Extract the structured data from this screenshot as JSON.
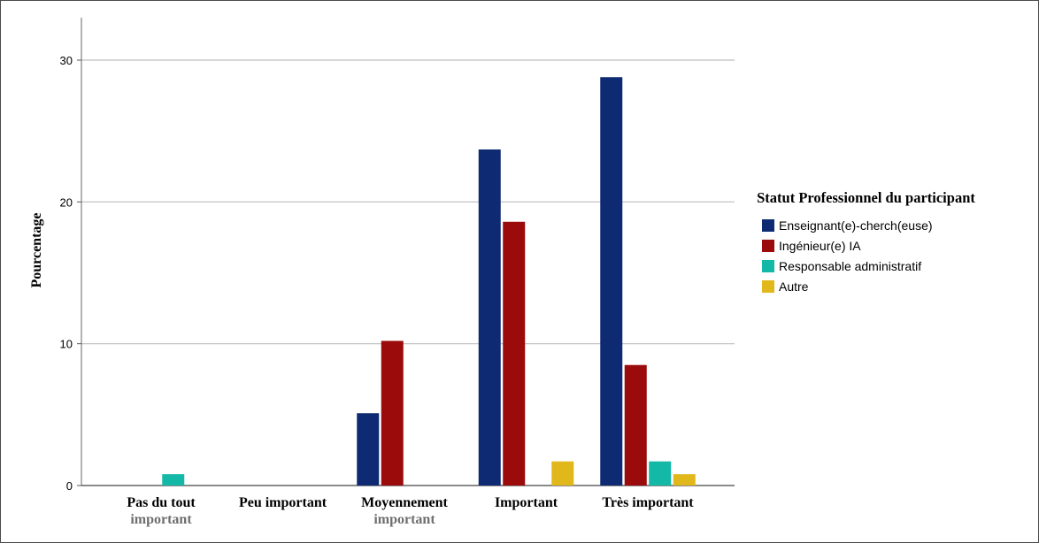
{
  "chart_data": {
    "type": "bar",
    "categories": [
      [
        "Pas du tout",
        "important"
      ],
      [
        "Peu important"
      ],
      [
        "Moyennement",
        "important"
      ],
      [
        "Important"
      ],
      [
        "Très important"
      ]
    ],
    "series": [
      {
        "name": "Enseignant(e)-cherch(euse)",
        "color": "#0e2a72",
        "values": [
          0,
          0,
          5.1,
          23.7,
          28.8
        ]
      },
      {
        "name": "Ingénieur(e) IA",
        "color": "#9b0b0b",
        "values": [
          0,
          0,
          10.2,
          18.6,
          8.5
        ]
      },
      {
        "name": "Responsable administratif",
        "color": "#14b8a6",
        "values": [
          0.8,
          0,
          0,
          0,
          1.7
        ]
      },
      {
        "name": "Autre",
        "color": "#e0b81c",
        "values": [
          0,
          0,
          0,
          1.7,
          0.8
        ]
      }
    ],
    "ylabel": "Pourcentage",
    "xlabel": "",
    "ylim": [
      0,
      33
    ],
    "yticks": [
      0,
      10,
      20,
      30
    ],
    "grid": true,
    "legend_title": "Statut Professionnel du participant",
    "legend_position": "right"
  }
}
